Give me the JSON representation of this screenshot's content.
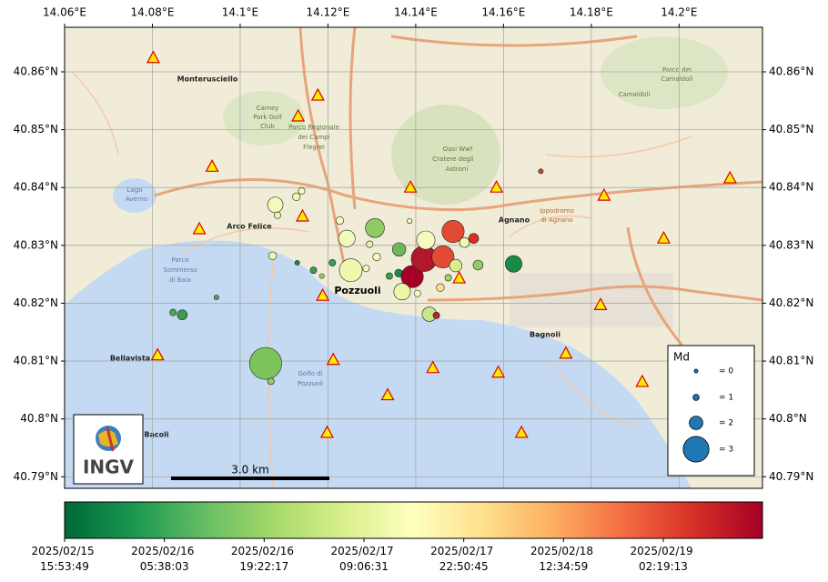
{
  "chart_data": {
    "type": "map",
    "xlim": [
      14.06,
      14.219
    ],
    "ylim": [
      40.788,
      40.8677
    ],
    "xticks": [
      {
        "value": 14.06,
        "label": "14.06°E"
      },
      {
        "value": 14.08,
        "label": "14.08°E"
      },
      {
        "value": 14.1,
        "label": "14.1°E"
      },
      {
        "value": 14.12,
        "label": "14.12°E"
      },
      {
        "value": 14.14,
        "label": "14.14°E"
      },
      {
        "value": 14.16,
        "label": "14.16°E"
      },
      {
        "value": 14.18,
        "label": "14.18°E"
      },
      {
        "value": 14.2,
        "label": "14.2°E"
      }
    ],
    "yticks": [
      {
        "value": 40.79,
        "label": "40.79°N"
      },
      {
        "value": 40.8,
        "label": "40.8°N"
      },
      {
        "value": 40.81,
        "label": "40.81°N"
      },
      {
        "value": 40.82,
        "label": "40.82°N"
      },
      {
        "value": 40.83,
        "label": "40.83°N"
      },
      {
        "value": 40.84,
        "label": "40.84°N"
      },
      {
        "value": 40.85,
        "label": "40.85°N"
      },
      {
        "value": 40.86,
        "label": "40.86°N"
      }
    ],
    "grid": true,
    "earthquakes": {
      "lon": [
        14.1058,
        14.107,
        14.0868,
        14.0847,
        14.0946,
        14.1074,
        14.113,
        14.1167,
        14.1186,
        14.121,
        14.1252,
        14.108,
        14.1128,
        14.114,
        14.1085,
        14.1227,
        14.1243,
        14.1307,
        14.1362,
        14.1311,
        14.1287,
        14.134,
        14.1361,
        14.1375,
        14.1392,
        14.1419,
        14.1462,
        14.1485,
        14.1423,
        14.1369,
        14.1431,
        14.1447,
        14.1456,
        14.1532,
        14.1542,
        14.1623,
        14.1685,
        14.1491,
        14.1511,
        14.1386,
        14.1295,
        14.1404,
        14.1474
      ],
      "lat": [
        40.8096,
        40.8065,
        40.818,
        40.8184,
        40.821,
        40.8282,
        40.827,
        40.8257,
        40.8247,
        40.827,
        40.8257,
        40.837,
        40.8384,
        40.8394,
        40.8352,
        40.8343,
        40.8312,
        40.833,
        40.8293,
        40.828,
        40.826,
        40.8247,
        40.8252,
        40.8249,
        40.8246,
        40.8277,
        40.828,
        40.8324,
        40.8309,
        40.822,
        40.8181,
        40.8179,
        40.8227,
        40.8312,
        40.8266,
        40.8268,
        40.8428,
        40.8265,
        40.8305,
        40.8342,
        40.8302,
        40.8217,
        40.8244
      ],
      "md": [
        3.4,
        1.1,
        1.6,
        1.1,
        0.7,
        1.3,
        0.7,
        1.1,
        0.7,
        1.1,
        2.8,
        2.2,
        1.3,
        1.1,
        1.1,
        1.3,
        2.3,
        2.5,
        2.0,
        1.3,
        1.1,
        1.1,
        1.3,
        1.1,
        2.75,
        3.0,
        2.75,
        2.75,
        2.45,
        2.3,
        2.1,
        1.1,
        1.3,
        1.6,
        1.6,
        2.3,
        0.7,
        1.9,
        1.6,
        0.7,
        1.1,
        1.1,
        1.1
      ],
      "colors": [
        "#7dc45c",
        "#8fcc66",
        "#3a9e4f",
        "#4aa555",
        "#4aa555",
        "#eef8a8",
        "#1a8a47",
        "#3a9e4f",
        "#9bd068",
        "#3a9e4f",
        "#f0f8b0",
        "#f3f9b8",
        "#eef8a8",
        "#f6f9c0",
        "#e8f5a0",
        "#f5fbc0",
        "#f3f9b8",
        "#90c965",
        "#6db85e",
        "#f5fbc0",
        "#f6f9c0",
        "#3a9e4f",
        "#1a8a47",
        "#3a9e4f",
        "#a50026",
        "#b2182b",
        "#e34a33",
        "#e34a33",
        "#f6f9c0",
        "#edf7a8",
        "#c9e68a",
        "#c02030",
        "#fee090",
        "#d73027",
        "#8fcc66",
        "#1a8a47",
        "#d0442a",
        "#d9ef8b",
        "#f0f8b0",
        "#f6f9c0",
        "#e8f5a0",
        "#f6f9c0",
        "#a0d46a"
      ]
    },
    "stations": {
      "lon": [
        14.0802,
        14.1177,
        14.1132,
        14.0936,
        14.0907,
        14.1142,
        14.1388,
        14.1584,
        14.1829,
        14.2116,
        14.1965,
        14.1188,
        14.1499,
        14.1821,
        14.0812,
        14.1212,
        14.1439,
        14.1588,
        14.1742,
        14.1916,
        14.1336,
        14.1198,
        14.1641
      ],
      "lat": [
        40.8624,
        40.8559,
        40.8523,
        40.8436,
        40.8328,
        40.835,
        40.84,
        40.84,
        40.8386,
        40.8416,
        40.8312,
        40.8213,
        40.8243,
        40.8197,
        40.811,
        40.8102,
        40.8088,
        40.808,
        40.8113,
        40.8064,
        40.8041,
        40.7976,
        40.7976
      ],
      "color": "#ffee00",
      "edge": "#dd0000"
    },
    "legend": {
      "title": "Md",
      "sizes": [
        0,
        1,
        2,
        3
      ],
      "labels": [
        "= 0",
        "= 1",
        "= 2",
        "= 3"
      ],
      "color": "#1f77b4"
    },
    "scale_bar": "3.0 km",
    "logo": "INGV",
    "places": [
      "Monterusciello",
      "Pozzuoli",
      "Arco Felice",
      "Agnano",
      "Bagnoli",
      "Bacoli",
      "Bellavista",
      "Golfo di",
      "Pozzuoli",
      "Lago",
      "Averno",
      "Camaldoli",
      "Oasi Wwf",
      "Cratere degli",
      "Astroni",
      "Carney",
      "Park Golf",
      "Club",
      "Parco Regionale",
      "dei Campi",
      "Flegrei",
      "Ippodromo",
      "di Agnano",
      "Parco",
      "Sommerso",
      "di Baia",
      "Parco dei",
      "Camaldoli"
    ],
    "colorbar": {
      "colors": [
        "#006837",
        "#1a9850",
        "#66bd63",
        "#a6d96a",
        "#d9ef8b",
        "#ffffbf",
        "#fee08b",
        "#fdae61",
        "#f46d43",
        "#d73027",
        "#a50026"
      ],
      "clim": [
        "2025-02-15T15:53:49",
        "2025-02-19T15:58:31"
      ],
      "ticks": [
        {
          "value": "2025-02-15T15:53:49",
          "label": "2025/02/15 15:53:49"
        },
        {
          "value": "2025-02-16T05:38:03",
          "label": "2025/02/16 05:38:03"
        },
        {
          "value": "2025-02-16T19:22:17",
          "label": "2025/02/16 19:22:17"
        },
        {
          "value": "2025-02-17T09:06:31",
          "label": "2025/02/17 09:06:31"
        },
        {
          "value": "2025-02-17T22:50:45",
          "label": "2025/02/17 22:50:45"
        },
        {
          "value": "2025-02-18T12:34:59",
          "label": "2025/02/18 12:34:59"
        },
        {
          "value": "2025-02-19T02:19:13",
          "label": "2025/02/19 02:19:13"
        }
      ]
    }
  }
}
